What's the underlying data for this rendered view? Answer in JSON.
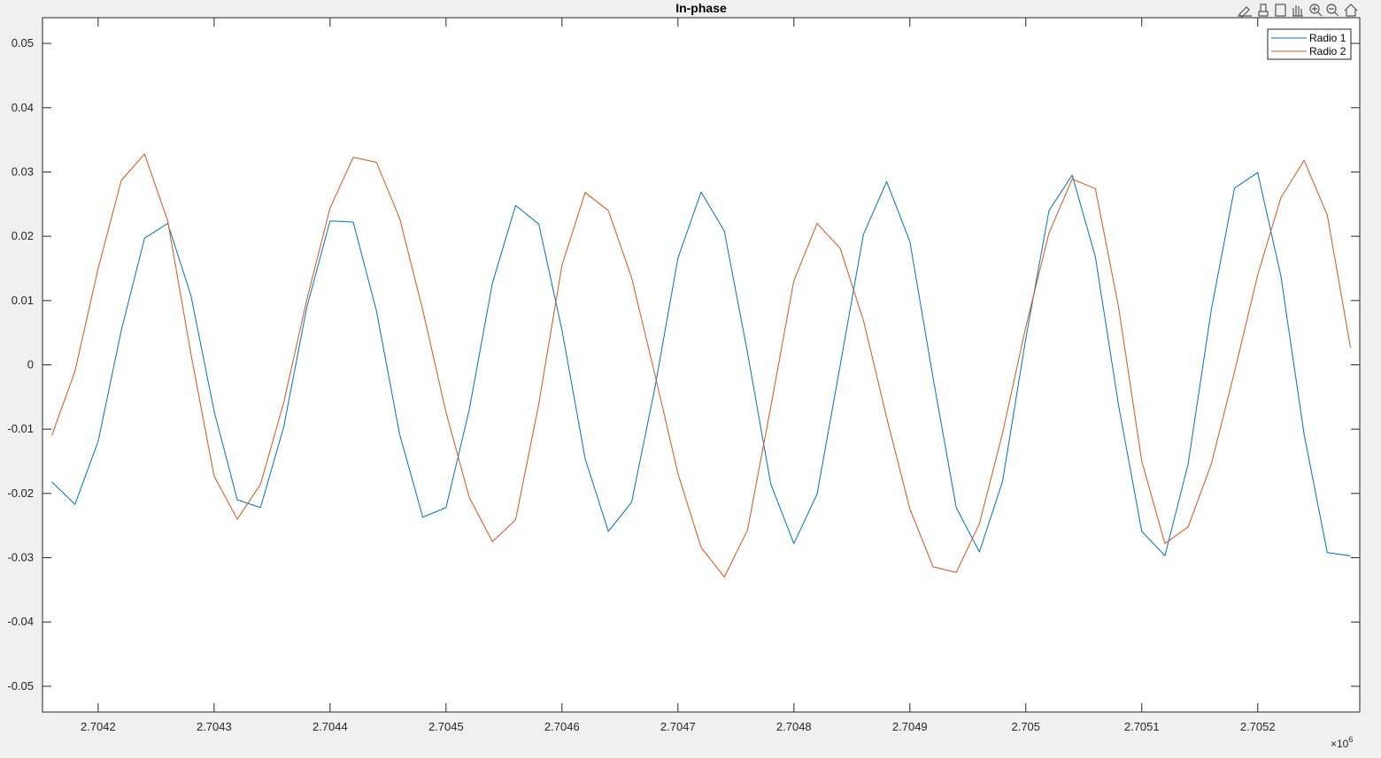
{
  "chart_data": {
    "type": "line",
    "title": "In-phase",
    "x": [
      2704160,
      2704180,
      2704200,
      2704220,
      2704240,
      2704260,
      2704280,
      2704300,
      2704320,
      2704340,
      2704360,
      2704380,
      2704400,
      2704420,
      2704440,
      2704460,
      2704480,
      2704500,
      2704520,
      2704540,
      2704560,
      2704580,
      2704600,
      2704620,
      2704640,
      2704660,
      2704680,
      2704700,
      2704720,
      2704740,
      2704760,
      2704780,
      2704800,
      2704820,
      2704840,
      2704860,
      2704880,
      2704900,
      2704920,
      2704940,
      2704960,
      2704980,
      2705000,
      2705020,
      2705040,
      2705060,
      2705080,
      2705100,
      2705120,
      2705140,
      2705160,
      2705180,
      2705200,
      2705220,
      2705240,
      2705260,
      2705280
    ],
    "series": [
      {
        "name": "Radio 1",
        "color": "#0072bd",
        "values": [
          -0.0182,
          -0.0217,
          -0.0119,
          0.0054,
          0.0197,
          0.022,
          0.0108,
          -0.0072,
          -0.021,
          -0.0222,
          -0.0097,
          0.009,
          0.0224,
          0.0222,
          0.0084,
          -0.0108,
          -0.0237,
          -0.0222,
          -0.007,
          0.0127,
          0.0248,
          0.0219,
          0.0054,
          -0.0146,
          -0.0259,
          -0.0214,
          -0.0037,
          0.0166,
          0.0269,
          0.0208,
          0.0019,
          -0.0185,
          -0.0278,
          -0.0201,
          0,
          0.0203,
          0.0285,
          0.0192,
          -0.002,
          -0.0222,
          -0.0291,
          -0.0181,
          0.0041,
          0.024,
          0.0295,
          0.0168,
          -0.0063,
          -0.0259,
          -0.0297,
          -0.0154,
          0.0086,
          0.0275,
          0.0299,
          0.0138,
          -0.0108,
          -0.0292,
          -0.0297
        ]
      },
      {
        "name": "Radio 2",
        "color": "#d95319",
        "values": [
          -0.011,
          -0.001,
          0.015,
          0.0287,
          0.0328,
          0.0224,
          0.0017,
          -0.0173,
          -0.024,
          -0.0186,
          -0.0059,
          0.0102,
          0.0244,
          0.0323,
          0.0315,
          0.0228,
          0.0085,
          -0.0074,
          -0.0206,
          -0.0275,
          -0.0241,
          -0.0061,
          0.0155,
          0.0268,
          0.024,
          0.0136,
          -0.0014,
          -0.0169,
          -0.0284,
          -0.033,
          -0.0257,
          -0.0066,
          0.0131,
          0.022,
          0.0181,
          0.0069,
          -0.0082,
          -0.0224,
          -0.0314,
          -0.0323,
          -0.0247,
          -0.0106,
          0.0059,
          0.0205,
          0.0289,
          0.0274,
          0.009,
          -0.015,
          -0.0278,
          -0.0252,
          -0.0154,
          -0.0011,
          0.014,
          0.026,
          0.0318,
          0.0233,
          0.0027
        ]
      }
    ],
    "xlim": [
      2704152,
      2705288
    ],
    "ylim": [
      -0.054,
      0.054
    ],
    "xticks": [
      {
        "value": 2704200,
        "label": "2.7042"
      },
      {
        "value": 2704300,
        "label": "2.7043"
      },
      {
        "value": 2704400,
        "label": "2.7044"
      },
      {
        "value": 2704500,
        "label": "2.7045"
      },
      {
        "value": 2704600,
        "label": "2.7046"
      },
      {
        "value": 2704700,
        "label": "2.7047"
      },
      {
        "value": 2704800,
        "label": "2.7048"
      },
      {
        "value": 2704900,
        "label": "2.7049"
      },
      {
        "value": 2705000,
        "label": "2.705"
      },
      {
        "value": 2705100,
        "label": "2.7051"
      },
      {
        "value": 2705200,
        "label": "2.7052"
      }
    ],
    "yticks": [
      -0.05,
      -0.04,
      -0.03,
      -0.02,
      -0.01,
      0,
      0.01,
      0.02,
      0.03,
      0.04,
      0.05
    ],
    "x_exponent_base": "×10",
    "x_exponent_power": "6",
    "grid": false,
    "legend": "upper-right"
  }
}
